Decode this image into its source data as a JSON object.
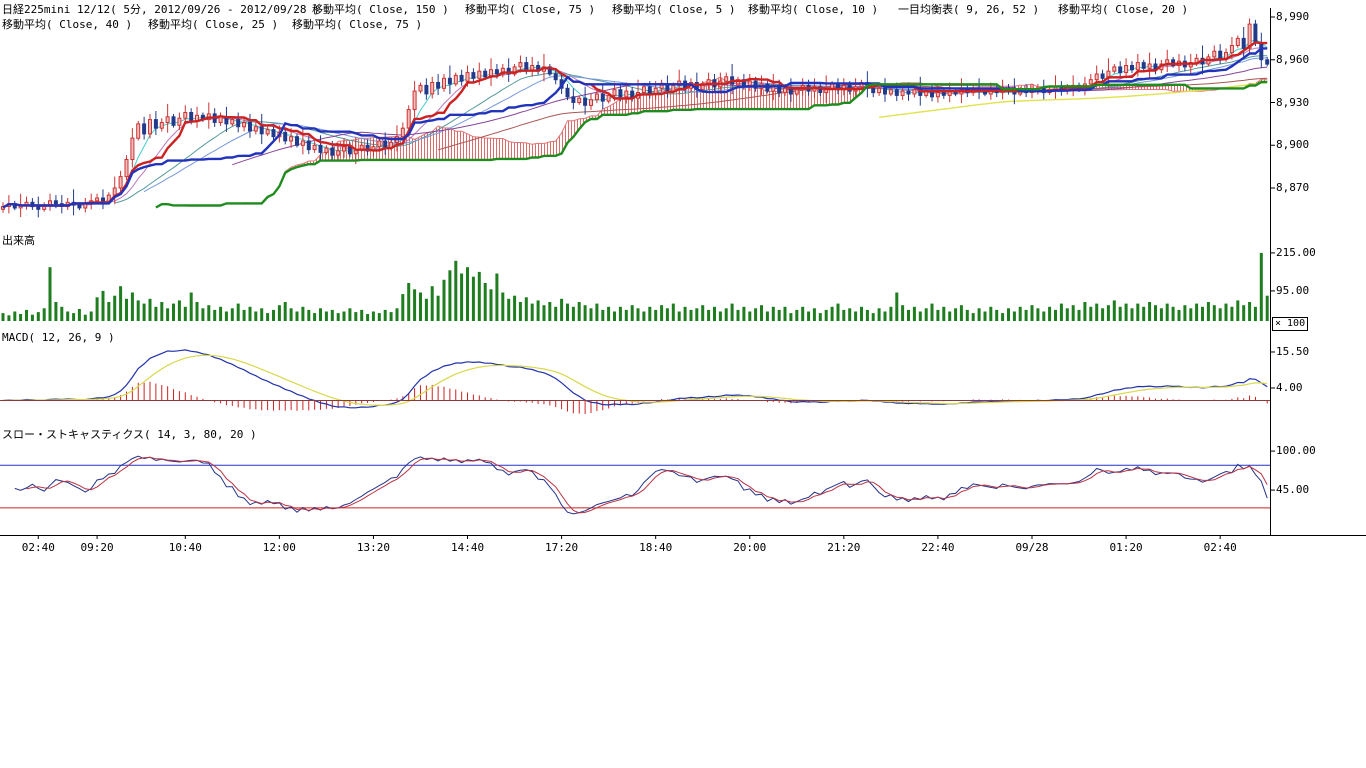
{
  "header": {
    "row1": [
      "日経225mini 12/12( 5分, 2012/09/26 - 2012/09/28 )",
      "移動平均( Close, 150 )",
      "移動平均( Close, 75 )",
      "移動平均( Close, 5 )",
      "移動平均( Close, 10 )",
      "一目均衡表( 9, 26, 52 )",
      "移動平均( Close, 20 )"
    ],
    "row2": [
      "移動平均( Close, 40 )",
      "移動平均( Close, 25 )",
      "移動平均( Close, 75 )"
    ]
  },
  "panels": {
    "volume_label": "出来高",
    "volume_unit": "× 100",
    "macd_label": "MACD( 12, 26, 9 )",
    "stoch_label": "スロー・ストキャスティクス( 14, 3, 80, 20 )"
  },
  "y_axes": {
    "price": [
      "8,990",
      "8,960",
      "8,930",
      "8,900",
      "8,870"
    ],
    "volume": [
      "215.00",
      "95.00"
    ],
    "macd": [
      "15.50",
      "4.00"
    ],
    "stoch": [
      "100.00",
      "45.00"
    ]
  },
  "x_axis": {
    "labels": [
      "02:40",
      "09:20",
      "10:40",
      "12:00",
      "13:20",
      "14:40",
      "17:20",
      "18:40",
      "20:00",
      "21:20",
      "22:40",
      "09/28",
      "01:20",
      "02:40"
    ],
    "tick_indices": [
      6,
      16,
      31,
      47,
      63,
      79,
      95,
      111,
      127,
      143,
      159,
      175,
      191,
      207
    ]
  },
  "chart_data": {
    "type": "candlestick",
    "instrument": "日経225mini 12/12",
    "interval": "5分",
    "date_range": "2012/09/26 - 2012/09/28",
    "price": {
      "closes": [
        8857,
        8859,
        8856,
        8858,
        8860,
        8857,
        8855,
        8858,
        8861,
        8859,
        8857,
        8860,
        8858,
        8856,
        8859,
        8861,
        8863,
        8860,
        8865,
        8870,
        8878,
        8890,
        8905,
        8915,
        8908,
        8918,
        8912,
        8916,
        8920,
        8914,
        8919,
        8923,
        8917,
        8921,
        8918,
        8922,
        8916,
        8920,
        8915,
        8918,
        8913,
        8916,
        8910,
        8913,
        8908,
        8911,
        8906,
        8909,
        8903,
        8906,
        8900,
        8903,
        8897,
        8900,
        8895,
        8898,
        8893,
        8896,
        8899,
        8894,
        8897,
        8900,
        8896,
        8899,
        8903,
        8898,
        8902,
        8906,
        8912,
        8925,
        8938,
        8942,
        8936,
        8944,
        8940,
        8947,
        8943,
        8949,
        8945,
        8951,
        8947,
        8952,
        8948,
        8953,
        8950,
        8954,
        8950,
        8955,
        8958,
        8953,
        8956,
        8952,
        8955,
        8950,
        8946,
        8940,
        8934,
        8930,
        8933,
        8928,
        8932,
        8936,
        8931,
        8935,
        8939,
        8934,
        8938,
        8933,
        8937,
        8941,
        8936,
        8940,
        8943,
        8938,
        8942,
        8945,
        8940,
        8944,
        8939,
        8943,
        8946,
        8941,
        8945,
        8948,
        8943,
        8946,
        8942,
        8945,
        8940,
        8943,
        8938,
        8942,
        8937,
        8940,
        8936,
        8939,
        8942,
        8938,
        8941,
        8937,
        8940,
        8943,
        8939,
        8942,
        8938,
        8941,
        8944,
        8940,
        8937,
        8940,
        8936,
        8939,
        8935,
        8938,
        8936,
        8939,
        8935,
        8938,
        8934,
        8937,
        8935,
        8938,
        8936,
        8939,
        8937,
        8940,
        8938,
        8936,
        8939,
        8937,
        8940,
        8938,
        8936,
        8939,
        8937,
        8938,
        8940,
        8937,
        8939,
        8941,
        8938,
        8940,
        8942,
        8939,
        8943,
        8946,
        8950,
        8947,
        8952,
        8955,
        8951,
        8956,
        8953,
        8958,
        8954,
        8957,
        8953,
        8957,
        8960,
        8956,
        8959,
        8955,
        8958,
        8961,
        8957,
        8962,
        8966,
        8961,
        8965,
        8970,
        8975,
        8968,
        8985,
        8972,
        8960,
        8957
      ],
      "hl_ranges": [
        3,
        6,
        2,
        8,
        4,
        3,
        7,
        2,
        5,
        4,
        6,
        3,
        9,
        2,
        4,
        5
      ],
      "ylim": [
        8845,
        8995
      ],
      "yticks": [
        8990,
        8960,
        8930,
        8900,
        8870
      ]
    },
    "volume": {
      "scale": "×100",
      "yticks": [
        215,
        95
      ],
      "values": [
        25,
        18,
        30,
        22,
        35,
        20,
        28,
        40,
        170,
        60,
        45,
        30,
        25,
        38,
        20,
        30,
        75,
        95,
        60,
        80,
        110,
        70,
        90,
        65,
        55,
        70,
        45,
        60,
        40,
        55,
        65,
        45,
        90,
        60,
        40,
        50,
        35,
        45,
        30,
        40,
        55,
        35,
        45,
        30,
        40,
        25,
        35,
        50,
        60,
        40,
        30,
        45,
        35,
        25,
        40,
        30,
        35,
        25,
        30,
        40,
        28,
        35,
        22,
        30,
        25,
        35,
        28,
        40,
        85,
        120,
        100,
        90,
        70,
        110,
        80,
        130,
        160,
        190,
        150,
        170,
        140,
        155,
        120,
        100,
        150,
        90,
        70,
        80,
        60,
        75,
        55,
        65,
        50,
        60,
        45,
        70,
        55,
        45,
        60,
        50,
        40,
        55,
        35,
        45,
        30,
        45,
        35,
        50,
        40,
        30,
        45,
        35,
        50,
        40,
        55,
        30,
        45,
        35,
        40,
        50,
        35,
        45,
        30,
        40,
        55,
        35,
        45,
        30,
        40,
        50,
        30,
        45,
        35,
        45,
        25,
        35,
        45,
        30,
        40,
        25,
        35,
        45,
        55,
        35,
        40,
        30,
        45,
        35,
        25,
        40,
        30,
        45,
        90,
        50,
        35,
        45,
        30,
        40,
        55,
        35,
        45,
        30,
        40,
        50,
        35,
        25,
        40,
        30,
        45,
        35,
        25,
        40,
        30,
        45,
        35,
        50,
        40,
        30,
        45,
        35,
        55,
        40,
        50,
        35,
        60,
        45,
        55,
        40,
        50,
        65,
        45,
        55,
        40,
        55,
        45,
        60,
        50,
        40,
        55,
        45,
        35,
        50,
        40,
        55,
        45,
        60,
        50,
        40,
        55,
        45,
        65,
        50,
        60,
        45,
        215,
        80
      ]
    },
    "indicators": {
      "sma_periods": [
        5,
        10,
        20,
        25,
        40,
        75,
        150
      ],
      "ichimoku": [
        9,
        26,
        52
      ],
      "macd": [
        12,
        26,
        9
      ],
      "stochastics": [
        14,
        3,
        80,
        20
      ]
    },
    "macd_axis": {
      "yticks": [
        15.5,
        4.0
      ]
    },
    "stoch_axis": {
      "yticks": [
        100,
        45
      ],
      "ref_lines": [
        80,
        20
      ]
    },
    "colors": {
      "up": "#cc3333",
      "up_fill": "#f6bdbd",
      "down": "#223a8c",
      "volume": "#1e7d1e",
      "macd_line": "#2233aa",
      "macd_signal": "#d8d84a",
      "macd_hist": "#cc2222",
      "macd_zero": "#8a3a3a",
      "stoch_k": "#223388",
      "stoch_d": "#bb3344",
      "ref80": "#2233cc",
      "ref20": "#cc2222",
      "tenkan": "#cc2222",
      "kijun": "#2233bb",
      "senkou_a": "#dd7777",
      "senkou_b": "#1f8c1f",
      "cloud_hatch": "#e06a6a",
      "sma": {
        "5": "#44cccc",
        "10": "#bb77bb",
        "20": "#559999",
        "25": "#7799dd",
        "40": "#884499",
        "75": "#aa5555",
        "150": "#e2e24e"
      }
    }
  }
}
